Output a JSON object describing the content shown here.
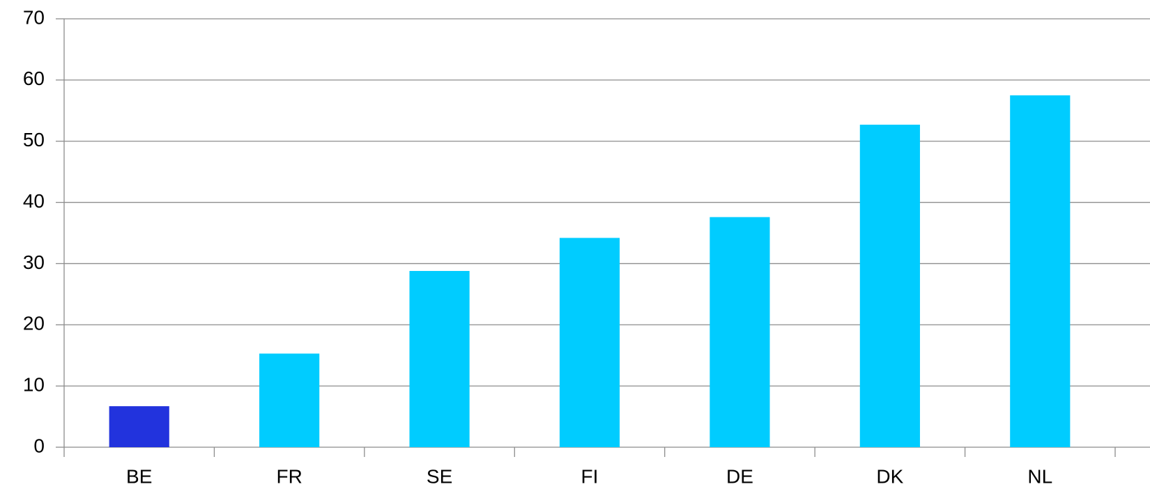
{
  "chart_data": {
    "type": "bar",
    "categories": [
      "BE",
      "FR",
      "SE",
      "FI",
      "DE",
      "DK",
      "NL"
    ],
    "values": [
      6.7,
      15.3,
      28.8,
      34.2,
      37.6,
      52.7,
      57.5
    ],
    "colors": [
      "#2233dd",
      "#00ccff",
      "#00ccff",
      "#00ccff",
      "#00ccff",
      "#00ccff",
      "#00ccff"
    ],
    "ylim": [
      0,
      70
    ],
    "yticks": [
      0,
      10,
      20,
      30,
      40,
      50,
      60,
      70
    ],
    "grid": true
  }
}
